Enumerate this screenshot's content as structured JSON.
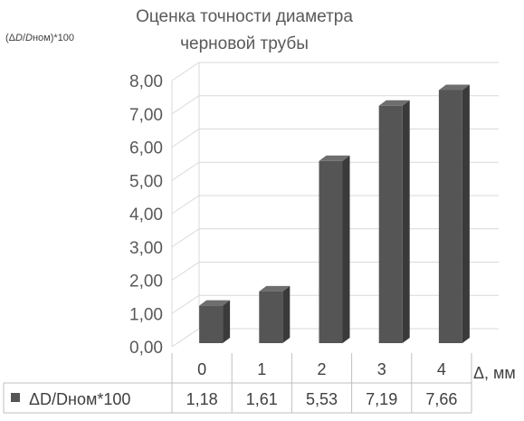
{
  "chart_data": {
    "type": "bar",
    "title_line1": "Оценка точности диаметра",
    "title_line2": "черновой трубы",
    "ylabel_open": "(Δ",
    "ylabel_D1": "D",
    "ylabel_slash": "/",
    "ylabel_D2": "D",
    "ylabel_tail": "ном)*100",
    "xlabel": "Δ, мм",
    "categories": [
      "0",
      "1",
      "2",
      "3",
      "4"
    ],
    "series": [
      {
        "name": "ΔD/Dном*100",
        "values": [
          1.18,
          1.61,
          5.53,
          7.19,
          7.66
        ],
        "labels": [
          "1,18",
          "1,61",
          "5,53",
          "7,19",
          "7,66"
        ]
      }
    ],
    "y_ticks": [
      "0,00",
      "1,00",
      "2,00",
      "3,00",
      "4,00",
      "5,00",
      "6,00",
      "7,00",
      "8,00"
    ],
    "ylim": [
      0,
      8
    ],
    "grid": true,
    "legend": "data-table-below",
    "bar_color": "#555555"
  }
}
